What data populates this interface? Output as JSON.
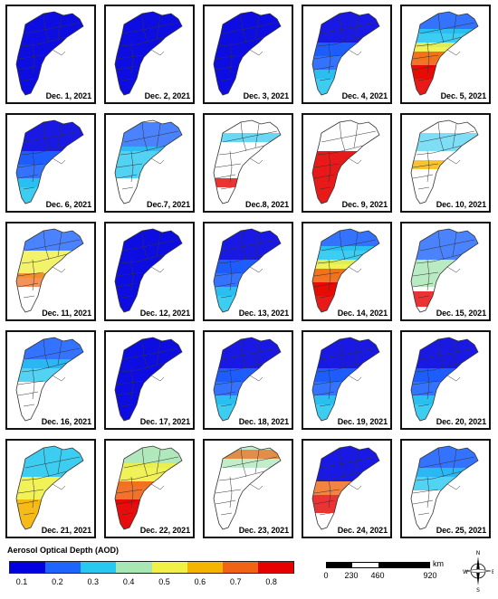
{
  "panels": [
    {
      "date": "Dec. 1, 2021",
      "pattern": "full_blue"
    },
    {
      "date": "Dec. 2, 2021",
      "pattern": "full_blue"
    },
    {
      "date": "Dec. 3, 2021",
      "pattern": "full_blue"
    },
    {
      "date": "Dec. 4, 2021",
      "pattern": "blue_cyan"
    },
    {
      "date": "Dec. 5, 2021",
      "pattern": "red_yellow_band"
    },
    {
      "date": "Dec. 6, 2021",
      "pattern": "blue_cyan"
    },
    {
      "date": "Dec.7, 2021",
      "pattern": "partial_cyan"
    },
    {
      "date": "Dec.8, 2021",
      "pattern": "sparse"
    },
    {
      "date": "Dec. 9, 2021",
      "pattern": "sparse_red"
    },
    {
      "date": "Dec. 10, 2021",
      "pattern": "sparse_mixed"
    },
    {
      "date": "Dec. 11, 2021",
      "pattern": "partial_yellow"
    },
    {
      "date": "Dec. 12, 2021",
      "pattern": "full_blue"
    },
    {
      "date": "Dec. 13, 2021",
      "pattern": "blue_cyan"
    },
    {
      "date": "Dec. 14, 2021",
      "pattern": "red_yellow_band"
    },
    {
      "date": "Dec. 15, 2021",
      "pattern": "partial_red"
    },
    {
      "date": "Dec. 16, 2021",
      "pattern": "top_blue"
    },
    {
      "date": "Dec. 17, 2021",
      "pattern": "full_blue"
    },
    {
      "date": "Dec. 18, 2021",
      "pattern": "blue_cyan"
    },
    {
      "date": "Dec. 19, 2021",
      "pattern": "blue_cyan"
    },
    {
      "date": "Dec. 20, 2021",
      "pattern": "blue_cyan"
    },
    {
      "date": "Dec. 21, 2021",
      "pattern": "cyan_yellow"
    },
    {
      "date": "Dec. 22, 2021",
      "pattern": "red_full"
    },
    {
      "date": "Dec. 23, 2021",
      "pattern": "sparse_top"
    },
    {
      "date": "Dec. 24, 2021",
      "pattern": "top_blue_red"
    },
    {
      "date": "Dec. 25, 2021",
      "pattern": "top_blue"
    }
  ],
  "legend": {
    "title": "Aerosol Optical Depth (AOD)",
    "colors": [
      "#0000e0",
      "#1e64ff",
      "#28c8f0",
      "#a8e6b4",
      "#f0f046",
      "#f5b400",
      "#f06414",
      "#e60000"
    ],
    "ticks": [
      "0.1",
      "0.2",
      "0.3",
      "0.4",
      "0.5",
      "0.6",
      "0.7",
      "0.8"
    ]
  },
  "scale": {
    "labels": [
      "0",
      "230",
      "460",
      "920"
    ],
    "unit": "km"
  },
  "compass": {
    "letters": [
      "N",
      "E",
      "S",
      "W"
    ],
    "icon": "compass-rose-icon"
  },
  "palette": {
    "outline": "#333333",
    "background": "#ffffff"
  }
}
